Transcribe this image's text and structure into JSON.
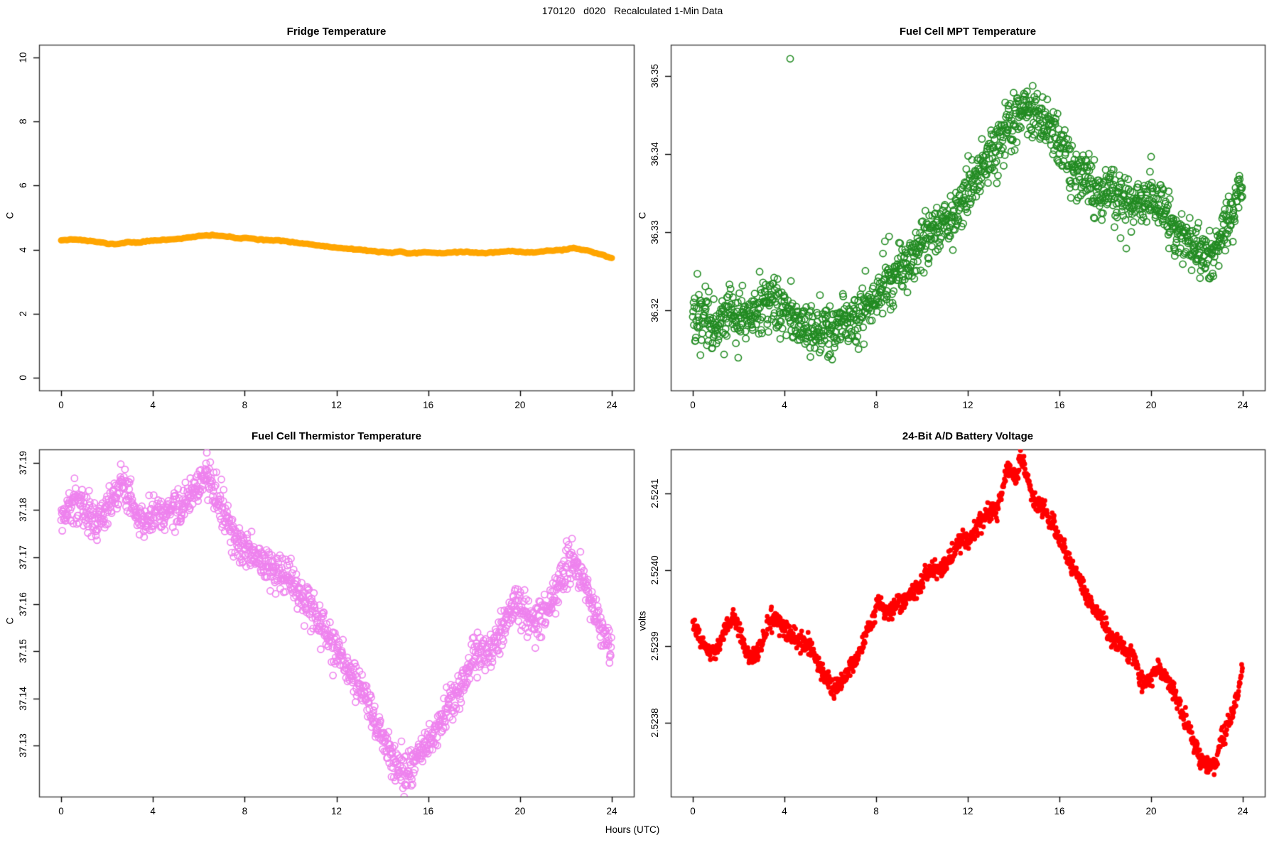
{
  "title": "170120   d020   Recalculated 1-Min Data",
  "xlabel": "Hours (UTC)",
  "chart_data": [
    {
      "type": "line",
      "title": "Fridge Temperature",
      "ylabel": "C",
      "color": "#FFA500",
      "marker": "thick-line",
      "line_width": 9,
      "xlim": [
        -0.96,
        24.96
      ],
      "ylim": [
        -0.4,
        10.4
      ],
      "xticks": [
        0,
        4,
        8,
        12,
        16,
        20,
        24
      ],
      "xtick_labels": [
        "0",
        "4",
        "8",
        "12",
        "16",
        "20",
        "24"
      ],
      "yticks": [
        0,
        2,
        4,
        6,
        8,
        10
      ],
      "ytick_labels": [
        "0",
        "2",
        "4",
        "6",
        "8",
        "10"
      ],
      "n_points": 288,
      "noise_sd": 0.008,
      "seed": 11,
      "outliers": [],
      "trend": [
        [
          0,
          4.3
        ],
        [
          0.4,
          4.32
        ],
        [
          0.8,
          4.31
        ],
        [
          1.2,
          4.27
        ],
        [
          1.6,
          4.24
        ],
        [
          2.0,
          4.19
        ],
        [
          2.4,
          4.17
        ],
        [
          2.7,
          4.21
        ],
        [
          3.0,
          4.24
        ],
        [
          3.3,
          4.21
        ],
        [
          3.7,
          4.26
        ],
        [
          4.1,
          4.29
        ],
        [
          4.6,
          4.31
        ],
        [
          5.1,
          4.34
        ],
        [
          5.6,
          4.38
        ],
        [
          6.1,
          4.43
        ],
        [
          6.6,
          4.45
        ],
        [
          7.0,
          4.43
        ],
        [
          7.4,
          4.39
        ],
        [
          7.8,
          4.34
        ],
        [
          8.1,
          4.37
        ],
        [
          8.5,
          4.33
        ],
        [
          9.0,
          4.3
        ],
        [
          9.5,
          4.28
        ],
        [
          10.0,
          4.24
        ],
        [
          10.5,
          4.2
        ],
        [
          11.0,
          4.15
        ],
        [
          11.5,
          4.1
        ],
        [
          12.0,
          4.06
        ],
        [
          12.5,
          4.02
        ],
        [
          13.0,
          4.0
        ],
        [
          13.5,
          3.96
        ],
        [
          14.0,
          3.92
        ],
        [
          14.4,
          3.9
        ],
        [
          14.8,
          3.94
        ],
        [
          15.1,
          3.87
        ],
        [
          15.5,
          3.89
        ],
        [
          16.0,
          3.92
        ],
        [
          16.5,
          3.89
        ],
        [
          17.0,
          3.91
        ],
        [
          17.5,
          3.93
        ],
        [
          18.0,
          3.91
        ],
        [
          18.5,
          3.89
        ],
        [
          19.0,
          3.92
        ],
        [
          19.5,
          3.95
        ],
        [
          20.0,
          3.93
        ],
        [
          20.5,
          3.91
        ],
        [
          21.0,
          3.95
        ],
        [
          21.5,
          3.98
        ],
        [
          22.0,
          4.0
        ],
        [
          22.4,
          4.04
        ],
        [
          22.8,
          3.99
        ],
        [
          23.2,
          3.92
        ],
        [
          23.6,
          3.83
        ],
        [
          24,
          3.73
        ]
      ]
    },
    {
      "type": "scatter",
      "title": "Fuel Cell MPT Temperature",
      "ylabel": "C",
      "color": "#228B22",
      "marker": "open-circle",
      "xlim": [
        -0.96,
        24.96
      ],
      "ylim": [
        36.3097,
        36.354
      ],
      "xticks": [
        0,
        4,
        8,
        12,
        16,
        20,
        24
      ],
      "xtick_labels": [
        "0",
        "4",
        "8",
        "12",
        "16",
        "20",
        "24"
      ],
      "yticks": [
        36.32,
        36.33,
        36.34,
        36.35
      ],
      "ytick_labels": [
        "36.32",
        "36.33",
        "36.34",
        "36.35"
      ],
      "n_points": 1440,
      "noise_sd": 0.0017,
      "seed": 22,
      "outliers": [
        [
          4.25,
          36.3522
        ]
      ],
      "trend": [
        [
          0,
          36.319
        ],
        [
          0.5,
          36.3198
        ],
        [
          1,
          36.3182
        ],
        [
          1.5,
          36.319
        ],
        [
          2,
          36.3196
        ],
        [
          2.5,
          36.3188
        ],
        [
          3,
          36.3204
        ],
        [
          3.5,
          36.321
        ],
        [
          4,
          36.32
        ],
        [
          4.5,
          36.3186
        ],
        [
          5,
          36.318
        ],
        [
          5.5,
          36.3176
        ],
        [
          6,
          36.317
        ],
        [
          6.5,
          36.318
        ],
        [
          7,
          36.3186
        ],
        [
          7.5,
          36.32
        ],
        [
          8,
          36.322
        ],
        [
          8.5,
          36.3236
        ],
        [
          9,
          36.325
        ],
        [
          9.5,
          36.3266
        ],
        [
          10,
          36.3286
        ],
        [
          10.5,
          36.33
        ],
        [
          11,
          36.3316
        ],
        [
          11.5,
          36.333
        ],
        [
          12,
          36.335
        ],
        [
          12.5,
          36.337
        ],
        [
          13,
          36.34
        ],
        [
          13.5,
          36.342
        ],
        [
          14,
          36.344
        ],
        [
          14.5,
          36.3458
        ],
        [
          15,
          36.345
        ],
        [
          15.5,
          36.3436
        ],
        [
          16,
          36.341
        ],
        [
          16.5,
          36.339
        ],
        [
          17,
          36.337
        ],
        [
          17.5,
          36.3356
        ],
        [
          18,
          36.335
        ],
        [
          18.5,
          36.3346
        ],
        [
          19,
          36.3336
        ],
        [
          19.5,
          36.334
        ],
        [
          20,
          36.3346
        ],
        [
          20.5,
          36.333
        ],
        [
          21,
          36.3306
        ],
        [
          21.5,
          36.329
        ],
        [
          22,
          36.3276
        ],
        [
          22.5,
          36.3268
        ],
        [
          23,
          36.329
        ],
        [
          23.5,
          36.332
        ],
        [
          24,
          36.337
        ]
      ]
    },
    {
      "type": "scatter",
      "title": "Fuel Cell Thermistor Temperature",
      "ylabel": "C",
      "color": "#EE82EE",
      "marker": "open-circle",
      "xlim": [
        -0.96,
        24.96
      ],
      "ylim": [
        37.1191,
        37.1929
      ],
      "xticks": [
        0,
        4,
        8,
        12,
        16,
        20,
        24
      ],
      "xtick_labels": [
        "0",
        "4",
        "8",
        "12",
        "16",
        "20",
        "24"
      ],
      "yticks": [
        37.13,
        37.14,
        37.15,
        37.16,
        37.17,
        37.18,
        37.19
      ],
      "ytick_labels": [
        "37.13",
        "37.14",
        "37.15",
        "37.16",
        "37.17",
        "37.18",
        "37.19"
      ],
      "n_points": 1440,
      "noise_sd": 0.002,
      "seed": 33,
      "outliers": [
        [
          6.35,
          37.1922
        ]
      ],
      "trend": [
        [
          0,
          37.178
        ],
        [
          0.3,
          37.18
        ],
        [
          0.6,
          37.182
        ],
        [
          0.9,
          37.181
        ],
        [
          1.2,
          37.179
        ],
        [
          1.5,
          37.1768
        ],
        [
          1.8,
          37.18
        ],
        [
          2.1,
          37.1812
        ],
        [
          2.4,
          37.183
        ],
        [
          2.7,
          37.1848
        ],
        [
          3.0,
          37.183
        ],
        [
          3.3,
          37.179
        ],
        [
          3.6,
          37.1772
        ],
        [
          3.9,
          37.179
        ],
        [
          4.2,
          37.18
        ],
        [
          4.5,
          37.1792
        ],
        [
          4.8,
          37.18
        ],
        [
          5.1,
          37.1808
        ],
        [
          5.4,
          37.1812
        ],
        [
          5.7,
          37.183
        ],
        [
          6.0,
          37.185
        ],
        [
          6.3,
          37.188
        ],
        [
          6.6,
          37.184
        ],
        [
          6.9,
          37.181
        ],
        [
          7.2,
          37.178
        ],
        [
          7.5,
          37.1752
        ],
        [
          7.8,
          37.1724
        ],
        [
          8.1,
          37.1712
        ],
        [
          8.4,
          37.17
        ],
        [
          8.7,
          37.1692
        ],
        [
          9.0,
          37.168
        ],
        [
          9.3,
          37.1672
        ],
        [
          9.6,
          37.1662
        ],
        [
          10.0,
          37.1652
        ],
        [
          10.4,
          37.163
        ],
        [
          10.8,
          37.16
        ],
        [
          11.2,
          37.157
        ],
        [
          11.6,
          37.1532
        ],
        [
          12.0,
          37.15
        ],
        [
          12.4,
          37.147
        ],
        [
          12.8,
          37.144
        ],
        [
          13.2,
          37.141
        ],
        [
          13.6,
          37.136
        ],
        [
          14.0,
          37.131
        ],
        [
          14.4,
          37.1268
        ],
        [
          14.7,
          37.1248
        ],
        [
          15.0,
          37.124
        ],
        [
          15.3,
          37.1258
        ],
        [
          15.6,
          37.128
        ],
        [
          16.0,
          37.131
        ],
        [
          16.4,
          37.1334
        ],
        [
          16.8,
          37.1372
        ],
        [
          17.2,
          37.141
        ],
        [
          17.6,
          37.1448
        ],
        [
          18.0,
          37.149
        ],
        [
          18.3,
          37.1508
        ],
        [
          18.6,
          37.1492
        ],
        [
          18.9,
          37.1516
        ],
        [
          19.2,
          37.1548
        ],
        [
          19.5,
          37.1578
        ],
        [
          19.8,
          37.16
        ],
        [
          20.1,
          37.159
        ],
        [
          20.4,
          37.1572
        ],
        [
          20.7,
          37.156
        ],
        [
          21.0,
          37.158
        ],
        [
          21.3,
          37.1608
        ],
        [
          21.6,
          37.1638
        ],
        [
          21.9,
          37.1666
        ],
        [
          22.2,
          37.1698
        ],
        [
          22.45,
          37.1688
        ],
        [
          22.7,
          37.166
        ],
        [
          23.0,
          37.162
        ],
        [
          23.3,
          37.158
        ],
        [
          23.6,
          37.155
        ],
        [
          23.9,
          37.1512
        ],
        [
          24,
          37.15
        ]
      ]
    },
    {
      "type": "scatter",
      "title": "24-Bit A/D Battery Voltage",
      "ylabel": "volts",
      "color": "#FF0000",
      "marker": "dense-dot",
      "xlim": [
        -0.96,
        24.96
      ],
      "ylim": [
        2.523703,
        2.524158
      ],
      "xticks": [
        0,
        4,
        8,
        12,
        16,
        20,
        24
      ],
      "xtick_labels": [
        "0",
        "4",
        "8",
        "12",
        "16",
        "20",
        "24"
      ],
      "yticks": [
        2.5238,
        2.5239,
        2.524,
        2.5241
      ],
      "ytick_labels": [
        "2.5238",
        "2.5239",
        "2.5240",
        "2.5241"
      ],
      "n_points": 1440,
      "noise_sd": 6e-06,
      "seed": 44,
      "outliers": [],
      "trend": [
        [
          0,
          2.52393
        ],
        [
          0.25,
          2.523915
        ],
        [
          0.5,
          2.5239
        ],
        [
          0.75,
          2.52389
        ],
        [
          1.0,
          2.523895
        ],
        [
          1.25,
          2.52391
        ],
        [
          1.5,
          2.523925
        ],
        [
          1.75,
          2.52394
        ],
        [
          2.0,
          2.523925
        ],
        [
          2.25,
          2.5239
        ],
        [
          2.5,
          2.52388
        ],
        [
          2.75,
          2.523885
        ],
        [
          3.0,
          2.5239
        ],
        [
          3.25,
          2.523925
        ],
        [
          3.5,
          2.52394
        ],
        [
          3.75,
          2.523935
        ],
        [
          4.0,
          2.52392
        ],
        [
          4.25,
          2.523915
        ],
        [
          4.5,
          2.52391
        ],
        [
          4.75,
          2.523905
        ],
        [
          5.0,
          2.5239
        ],
        [
          5.25,
          2.52389
        ],
        [
          5.5,
          2.523875
        ],
        [
          5.75,
          2.52386
        ],
        [
          6.0,
          2.52385
        ],
        [
          6.2,
          2.523845
        ],
        [
          6.4,
          2.52385
        ],
        [
          6.6,
          2.523855
        ],
        [
          6.8,
          2.52387
        ],
        [
          7.0,
          2.52388
        ],
        [
          7.25,
          2.523895
        ],
        [
          7.5,
          2.52391
        ],
        [
          7.75,
          2.523925
        ],
        [
          8.0,
          2.52395
        ],
        [
          8.1,
          2.52396
        ],
        [
          8.25,
          2.523955
        ],
        [
          8.4,
          2.52394
        ],
        [
          8.6,
          2.523945
        ],
        [
          8.8,
          2.52395
        ],
        [
          9.0,
          2.523955
        ],
        [
          9.25,
          2.52396
        ],
        [
          9.5,
          2.52397
        ],
        [
          9.75,
          2.523975
        ],
        [
          10.0,
          2.52398
        ],
        [
          10.2,
          2.523995
        ],
        [
          10.4,
          2.524
        ],
        [
          10.7,
          2.524
        ],
        [
          10.9,
          2.524005
        ],
        [
          11.1,
          2.52401
        ],
        [
          11.35,
          2.52402
        ],
        [
          11.6,
          2.524035
        ],
        [
          11.8,
          2.52404
        ],
        [
          11.95,
          2.524035
        ],
        [
          12.1,
          2.52404
        ],
        [
          12.3,
          2.52405
        ],
        [
          12.5,
          2.52406
        ],
        [
          12.7,
          2.52407
        ],
        [
          12.9,
          2.524075
        ],
        [
          13.1,
          2.52408
        ],
        [
          13.3,
          2.52408
        ],
        [
          13.5,
          2.524105
        ],
        [
          13.7,
          2.52413
        ],
        [
          13.85,
          2.524135
        ],
        [
          14.0,
          2.52412
        ],
        [
          14.15,
          2.524125
        ],
        [
          14.3,
          2.524145
        ],
        [
          14.45,
          2.52414
        ],
        [
          14.6,
          2.52412
        ],
        [
          14.75,
          2.524105
        ],
        [
          14.9,
          2.52409
        ],
        [
          15.1,
          2.524085
        ],
        [
          15.3,
          2.52408
        ],
        [
          15.5,
          2.52407
        ],
        [
          15.75,
          2.524055
        ],
        [
          16.0,
          2.52404
        ],
        [
          16.25,
          2.524025
        ],
        [
          16.5,
          2.52401
        ],
        [
          16.75,
          2.523995
        ],
        [
          17.0,
          2.52398
        ],
        [
          17.2,
          2.523965
        ],
        [
          17.4,
          2.52395
        ],
        [
          17.6,
          2.523945
        ],
        [
          17.8,
          2.52394
        ],
        [
          18.0,
          2.523925
        ],
        [
          18.2,
          2.52391
        ],
        [
          18.45,
          2.523905
        ],
        [
          18.7,
          2.5239
        ],
        [
          18.9,
          2.523895
        ],
        [
          19.1,
          2.52389
        ],
        [
          19.3,
          2.52388
        ],
        [
          19.5,
          2.52386
        ],
        [
          19.65,
          2.52385
        ],
        [
          19.8,
          2.523855
        ],
        [
          20.0,
          2.52386
        ],
        [
          20.15,
          2.523865
        ],
        [
          20.3,
          2.52387
        ],
        [
          20.45,
          2.523865
        ],
        [
          20.6,
          2.52386
        ],
        [
          20.8,
          2.52385
        ],
        [
          21.0,
          2.52384
        ],
        [
          21.2,
          2.523825
        ],
        [
          21.4,
          2.52381
        ],
        [
          21.6,
          2.523795
        ],
        [
          21.8,
          2.52378
        ],
        [
          22.0,
          2.523765
        ],
        [
          22.2,
          2.52375
        ],
        [
          22.4,
          2.523745
        ],
        [
          22.6,
          2.523745
        ],
        [
          22.8,
          2.52375
        ],
        [
          23.0,
          2.52377
        ],
        [
          23.2,
          2.523785
        ],
        [
          23.4,
          2.5238
        ],
        [
          23.6,
          2.523815
        ],
        [
          23.8,
          2.52384
        ],
        [
          24,
          2.52387
        ]
      ]
    }
  ]
}
